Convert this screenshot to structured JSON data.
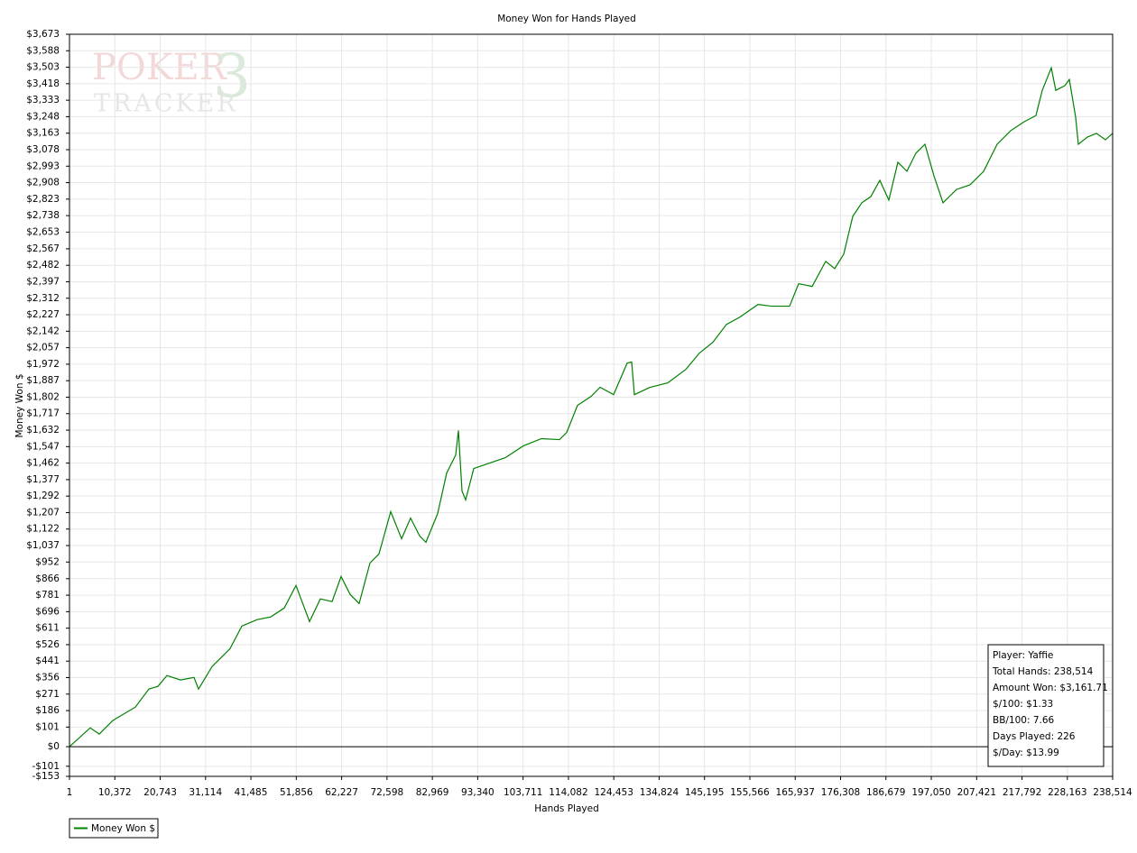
{
  "chart_data": {
    "type": "line",
    "title": "Money Won for Hands Played",
    "xlabel": "Hands Played",
    "ylabel": "Money Won $",
    "xlim": [
      1,
      238514
    ],
    "ylim": [
      -153,
      3673
    ],
    "grid": true,
    "legend": "bottom-left",
    "xticks": [
      1,
      {
        "value": 10372,
        "label": "10,372"
      },
      {
        "value": 20743,
        "label": "20,743"
      },
      {
        "value": 31114,
        "label": "31,114"
      },
      {
        "value": 41485,
        "label": "41,485"
      },
      {
        "value": 51856,
        "label": "51,856"
      },
      {
        "value": 62227,
        "label": "62,227"
      },
      {
        "value": 72598,
        "label": "72,598"
      },
      {
        "value": 82969,
        "label": "82,969"
      },
      {
        "value": 93340,
        "label": "93,340"
      },
      {
        "value": 103711,
        "label": "103,711"
      },
      {
        "value": 114082,
        "label": "114,082"
      },
      {
        "value": 124453,
        "label": "124,453"
      },
      {
        "value": 134824,
        "label": "134,824"
      },
      {
        "value": 145195,
        "label": "145,195"
      },
      {
        "value": 155566,
        "label": "155,566"
      },
      {
        "value": 165937,
        "label": "165,937"
      },
      {
        "value": 176308,
        "label": "176,308"
      },
      {
        "value": 186679,
        "label": "186,679"
      },
      {
        "value": 197050,
        "label": "197,050"
      },
      {
        "value": 207421,
        "label": "207,421"
      },
      {
        "value": 217792,
        "label": "217,792"
      },
      {
        "value": 228163,
        "label": "228,163"
      },
      {
        "value": 238514,
        "label": "238,514"
      }
    ],
    "yticks": [
      {
        "value": -153,
        "label": "-$153"
      },
      {
        "value": -101,
        "label": "-$101"
      },
      {
        "value": 0,
        "label": "$0"
      },
      {
        "value": 101,
        "label": "$101"
      },
      {
        "value": 186,
        "label": "$186"
      },
      {
        "value": 271,
        "label": "$271"
      },
      {
        "value": 356,
        "label": "$356"
      },
      {
        "value": 441,
        "label": "$441"
      },
      {
        "value": 526,
        "label": "$526"
      },
      {
        "value": 611,
        "label": "$611"
      },
      {
        "value": 696,
        "label": "$696"
      },
      {
        "value": 781,
        "label": "$781"
      },
      {
        "value": 866,
        "label": "$866"
      },
      {
        "value": 952,
        "label": "$952"
      },
      {
        "value": 1037,
        "label": "$1,037"
      },
      {
        "value": 1122,
        "label": "$1,122"
      },
      {
        "value": 1207,
        "label": "$1,207"
      },
      {
        "value": 1292,
        "label": "$1,292"
      },
      {
        "value": 1377,
        "label": "$1,377"
      },
      {
        "value": 1462,
        "label": "$1,462"
      },
      {
        "value": 1547,
        "label": "$1,547"
      },
      {
        "value": 1632,
        "label": "$1,632"
      },
      {
        "value": 1717,
        "label": "$1,717"
      },
      {
        "value": 1802,
        "label": "$1,802"
      },
      {
        "value": 1887,
        "label": "$1,887"
      },
      {
        "value": 1972,
        "label": "$1,972"
      },
      {
        "value": 2057,
        "label": "$2,057"
      },
      {
        "value": 2142,
        "label": "$2,142"
      },
      {
        "value": 2227,
        "label": "$2,227"
      },
      {
        "value": 2312,
        "label": "$2,312"
      },
      {
        "value": 2397,
        "label": "$2,397"
      },
      {
        "value": 2482,
        "label": "$2,482"
      },
      {
        "value": 2567,
        "label": "$2,567"
      },
      {
        "value": 2653,
        "label": "$2,653"
      },
      {
        "value": 2738,
        "label": "$2,738"
      },
      {
        "value": 2823,
        "label": "$2,823"
      },
      {
        "value": 2908,
        "label": "$2,908"
      },
      {
        "value": 2993,
        "label": "$2,993"
      },
      {
        "value": 3078,
        "label": "$3,078"
      },
      {
        "value": 3163,
        "label": "$3,163"
      },
      {
        "value": 3248,
        "label": "$3,248"
      },
      {
        "value": 3333,
        "label": "$3,333"
      },
      {
        "value": 3418,
        "label": "$3,418"
      },
      {
        "value": 3503,
        "label": "$3,503"
      },
      {
        "value": 3588,
        "label": "$3,588"
      },
      {
        "value": 3673,
        "label": "$3,673"
      }
    ],
    "x": [
      1,
      4746,
      6809,
      9904,
      15062,
      18157,
      20220,
      22284,
      25379,
      28474,
      29506,
      32601,
      36727,
      39410,
      42917,
      46012,
      49107,
      51789,
      54884,
      57360,
      60042,
      62106,
      64169,
      66232,
      68708,
      70771,
      73453,
      75929,
      77992,
      80055,
      81500,
      84182,
      86245,
      88308,
      88927,
      89752,
      90578,
      92435,
      95530,
      99656,
      103783,
      107910,
      112036,
      113687,
      116163,
      119258,
      121321,
      124416,
      127511,
      128543,
      129162,
      132669,
      136796,
      140923,
      144017,
      147112,
      150207,
      153302,
      157429,
      160523,
      164650,
      166713,
      169808,
      172903,
      174966,
      177030,
      179093,
      181156,
      183220,
      185283,
      187346,
      189410,
      191473,
      193536,
      195600,
      197663,
      199726,
      202821,
      205916,
      209011,
      212106,
      215201,
      218296,
      220978,
      222422,
      224486,
      225517,
      227581,
      228612,
      230056,
      230675,
      232739,
      234802,
      236865,
      238514
    ],
    "series": [
      {
        "name": "Money Won $",
        "color": "#008000",
        "values": [
          0,
          97,
          65,
          135,
          204,
          297,
          311,
          367,
          344,
          357,
          297,
          413,
          506,
          622,
          655,
          669,
          715,
          831,
          645,
          762,
          748,
          877,
          785,
          738,
          947,
          994,
          1212,
          1072,
          1179,
          1087,
          1054,
          1202,
          1411,
          1504,
          1630,
          1318,
          1272,
          1434,
          1458,
          1490,
          1551,
          1588,
          1583,
          1620,
          1760,
          1806,
          1853,
          1815,
          1978,
          1983,
          1815,
          1852,
          1876,
          1945,
          2029,
          2085,
          2177,
          2215,
          2280,
          2271,
          2271,
          2387,
          2373,
          2502,
          2465,
          2539,
          2734,
          2804,
          2836,
          2920,
          2818,
          3013,
          2967,
          3060,
          3106,
          2943,
          2804,
          2873,
          2897,
          2966,
          3106,
          3176,
          3222,
          3254,
          3384,
          3500,
          3384,
          3408,
          3440,
          3245,
          3106,
          3143,
          3162,
          3129,
          3161.71
        ]
      }
    ],
    "info_box": [
      "Player: Yaffie",
      "Total Hands: 238,514",
      "Amount Won: $3,161.71",
      "$/100: $1.33",
      "BB/100: 7.66",
      "Days Played: 226",
      "$/Day: $13.99"
    ],
    "watermark": [
      "POKER",
      "TRACKER",
      "3"
    ]
  }
}
